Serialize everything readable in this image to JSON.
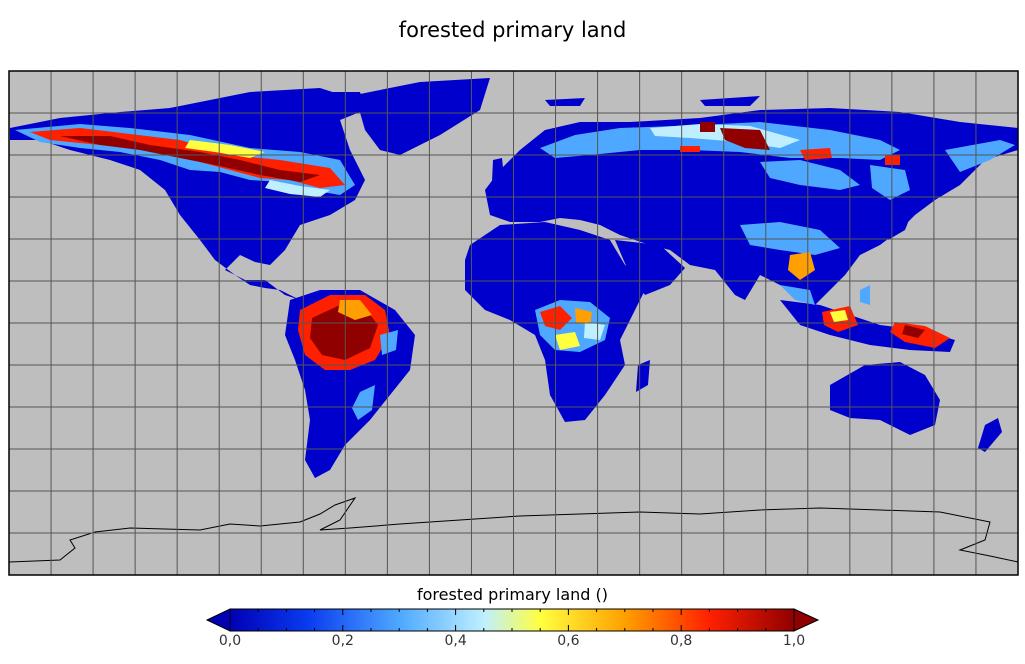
{
  "title": "forested primary land",
  "colorbar": {
    "label": "forested primary land ()",
    "ticks": [
      "0,0",
      "0,2",
      "0,4",
      "0,6",
      "0,8",
      "1,0"
    ],
    "min": 0,
    "max": 1,
    "extend": "both",
    "colors": [
      "#0000b4",
      "#0a3cf0",
      "#4ea8ff",
      "#bfefff",
      "#ffff40",
      "#ffa000",
      "#ff2000",
      "#900000"
    ]
  },
  "map": {
    "projection": "equirectangular",
    "grid": true,
    "ocean_color": "#bebebe",
    "land_color": "#0000cd",
    "high_value_regions": [
      "Amazon basin",
      "Congo basin",
      "Canadian boreal forest",
      "Alaska",
      "Siberian taiga",
      "New Guinea",
      "Borneo",
      "Southeast Asia"
    ]
  }
}
